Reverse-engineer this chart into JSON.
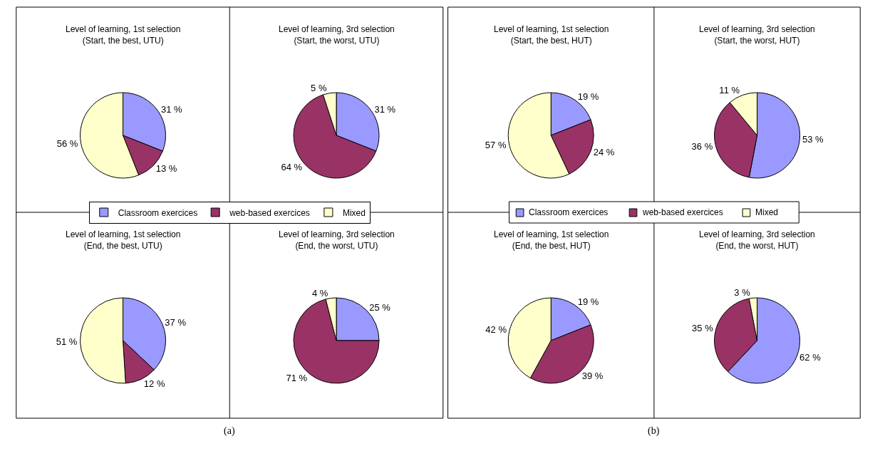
{
  "chart_data": [
    {
      "type": "pie",
      "categories": [
        "Classroom exercices",
        "web-based exercices",
        "Mixed"
      ],
      "colors": [
        "#9999ff",
        "#993366",
        "#ffffcc"
      ],
      "legend": "center",
      "annotations": [
        "(a)"
      ],
      "series": [
        {
          "name": "Level of learning, 1st selection\n(Start, the best, UTU)",
          "values": [
            31,
            13,
            56
          ],
          "value_labels": [
            "31 %",
            "13 %",
            "56 %"
          ]
        },
        {
          "name": "Level of learning, 3rd selection\n(Start, the worst, UTU)",
          "values": [
            31,
            64,
            5
          ],
          "value_labels": [
            "31 %",
            "64 %",
            "5 %"
          ]
        },
        {
          "name": "Level of learning, 1st selection\n(End, the best, UTU)",
          "values": [
            37,
            12,
            51
          ],
          "value_labels": [
            "37 %",
            "12 %",
            "51 %"
          ]
        },
        {
          "name": "Level of learning, 3rd selection\n(End, the worst, UTU)",
          "values": [
            25,
            71,
            4
          ],
          "value_labels": [
            "25 %",
            "71 %",
            "4 %"
          ]
        }
      ]
    },
    {
      "type": "pie",
      "categories": [
        "Classroom exercices",
        "web-based exercices",
        "Mixed"
      ],
      "colors": [
        "#9999ff",
        "#993366",
        "#ffffcc"
      ],
      "legend": "center",
      "annotations": [
        "(b)"
      ],
      "series": [
        {
          "name": "Level of learning, 1st selection\n(Start, the best, HUT)",
          "values": [
            19,
            24,
            57
          ],
          "value_labels": [
            "19 %",
            "24 %",
            "57 %"
          ]
        },
        {
          "name": "Level of learning, 3rd selection\n(Start, the worst, HUT)",
          "values": [
            53,
            36,
            11
          ],
          "value_labels": [
            "53 %",
            "36 %",
            "11 %"
          ]
        },
        {
          "name": "Level of learning, 1st selection\n(End, the best, HUT)",
          "values": [
            19,
            39,
            42
          ],
          "value_labels": [
            "19 %",
            "39 %",
            "42 %"
          ]
        },
        {
          "name": "Level of learning, 3rd selection\n(End, the worst, HUT)",
          "values": [
            62,
            35,
            3
          ],
          "value_labels": [
            "62 %",
            "35 %",
            "3 %"
          ]
        }
      ]
    }
  ]
}
